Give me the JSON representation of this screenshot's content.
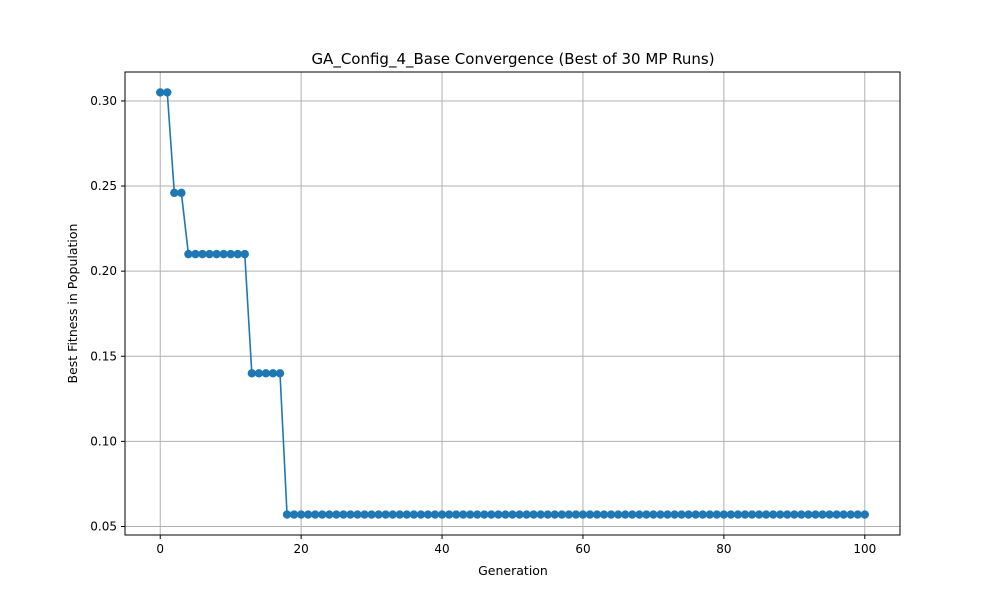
{
  "chart_data": {
    "type": "line",
    "title": "GA_Config_4_Base Convergence (Best of 30 MP Runs)",
    "xlabel": "Generation",
    "ylabel": "Best Fitness in Population",
    "xlim": [
      -5,
      105
    ],
    "ylim": [
      0.045,
      0.317
    ],
    "xticks": [
      0,
      20,
      40,
      60,
      80,
      100
    ],
    "xtick_labels": [
      "0",
      "20",
      "40",
      "60",
      "80",
      "100"
    ],
    "yticks": [
      0.05,
      0.1,
      0.15,
      0.2,
      0.25,
      0.3
    ],
    "ytick_labels": [
      "0.05",
      "0.10",
      "0.15",
      "0.20",
      "0.25",
      "0.30"
    ],
    "grid": true,
    "color": "#1f77b4",
    "marker": "circle",
    "series": [
      {
        "x": [
          0,
          1,
          2,
          3,
          4,
          5,
          6,
          7,
          8,
          9,
          10,
          11,
          12,
          13,
          14,
          15,
          16,
          17,
          18,
          19,
          20,
          21,
          22,
          23,
          24,
          25,
          26,
          27,
          28,
          29,
          30,
          31,
          32,
          33,
          34,
          35,
          36,
          37,
          38,
          39,
          40,
          41,
          42,
          43,
          44,
          45,
          46,
          47,
          48,
          49,
          50,
          51,
          52,
          53,
          54,
          55,
          56,
          57,
          58,
          59,
          60,
          61,
          62,
          63,
          64,
          65,
          66,
          67,
          68,
          69,
          70,
          71,
          72,
          73,
          74,
          75,
          76,
          77,
          78,
          79,
          80,
          81,
          82,
          83,
          84,
          85,
          86,
          87,
          88,
          89,
          90,
          91,
          92,
          93,
          94,
          95,
          96,
          97,
          98,
          99,
          100
        ],
        "y": [
          0.305,
          0.305,
          0.246,
          0.246,
          0.21,
          0.21,
          0.21,
          0.21,
          0.21,
          0.21,
          0.21,
          0.21,
          0.21,
          0.14,
          0.14,
          0.14,
          0.14,
          0.14,
          0.057,
          0.057,
          0.057,
          0.057,
          0.057,
          0.057,
          0.057,
          0.057,
          0.057,
          0.057,
          0.057,
          0.057,
          0.057,
          0.057,
          0.057,
          0.057,
          0.057,
          0.057,
          0.057,
          0.057,
          0.057,
          0.057,
          0.057,
          0.057,
          0.057,
          0.057,
          0.057,
          0.057,
          0.057,
          0.057,
          0.057,
          0.057,
          0.057,
          0.057,
          0.057,
          0.057,
          0.057,
          0.057,
          0.057,
          0.057,
          0.057,
          0.057,
          0.057,
          0.057,
          0.057,
          0.057,
          0.057,
          0.057,
          0.057,
          0.057,
          0.057,
          0.057,
          0.057,
          0.057,
          0.057,
          0.057,
          0.057,
          0.057,
          0.057,
          0.057,
          0.057,
          0.057,
          0.057,
          0.057,
          0.057,
          0.057,
          0.057,
          0.057,
          0.057,
          0.057,
          0.057,
          0.057,
          0.057,
          0.057,
          0.057,
          0.057,
          0.057,
          0.057,
          0.057,
          0.057,
          0.057,
          0.057,
          0.057
        ]
      }
    ]
  }
}
